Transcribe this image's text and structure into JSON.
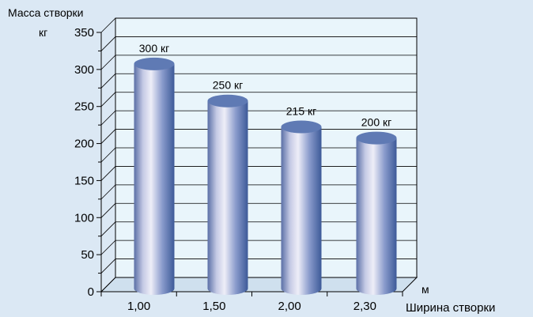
{
  "chart_data": {
    "type": "bar",
    "ylabel": "Масса створки",
    "yunit": "кг",
    "xlabel": "Ширина створки",
    "xunit": "м",
    "categories": [
      "1,00",
      "1,50",
      "2,00",
      "2,30"
    ],
    "values": [
      300,
      250,
      215,
      200
    ],
    "data_labels": [
      "300 кг",
      "250 кг",
      "215 кг",
      "200 кг"
    ],
    "ylim": [
      0,
      350
    ],
    "yticks": [
      "0",
      "50",
      "100",
      "150",
      "200",
      "250",
      "300",
      "350"
    ],
    "grid": true,
    "colors": {
      "background": "#dbe8f4",
      "plot_wall": "#e9f5fb",
      "floor": "#cfe0ee",
      "bar_light": "#eeeef8",
      "bar_dark": "#3d5a98",
      "bar_top": "#5f7ab4"
    }
  }
}
